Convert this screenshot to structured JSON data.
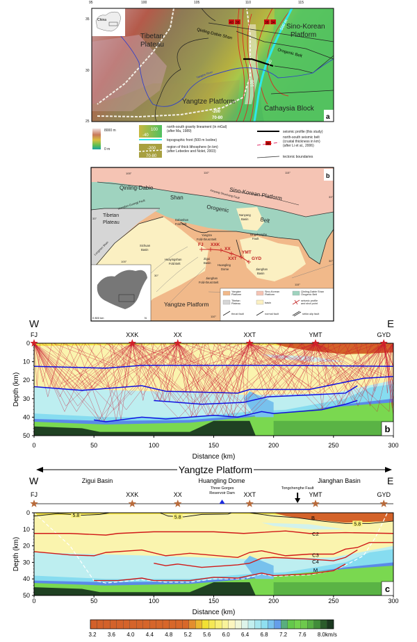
{
  "panel_a": {
    "panel_letter": "a",
    "lon_ticks": [
      "95",
      "100",
      "105",
      "110",
      "115"
    ],
    "lat_ticks": [
      "35",
      "30",
      "25"
    ],
    "inset_label": "China",
    "labels": {
      "tibetan_1": "Tibetan",
      "tibetan_2": "Plateau",
      "qinling": "Qinling-Dabie Shan",
      "sino_1": "Sino-Korean",
      "sino_2": "Platform",
      "orogenic": "Orogenic Belt",
      "yangtze_river": "Yangtze River",
      "yangtze": "Yangtze Platform",
      "cathaysia": "Cathaysia Block",
      "iso500": "500 m",
      "g100": "100",
      "g40": "-40",
      "lith200": "-200",
      "lith7080": "70-80"
    },
    "belt_boxes": [
      "40",
      "38",
      "38",
      "34"
    ],
    "legend": {
      "elev_max": "8000 m",
      "elev_min": "0 m",
      "gravity_1": "north-south gravity lineament (in mGal)",
      "gravity_2": "(after Ma, 1989)",
      "gravity_sw1": "100",
      "gravity_sw2": "-40",
      "topo": "topographic front (500 m Isoline)",
      "lith_1": "region of thick lithosphere (in km)",
      "lith_2": "(after Lebedev and Nolet, 2003)",
      "lith_sw1": "-200",
      "lith_sw2": "70-80",
      "profile": "seismic profile (this study)",
      "belt_1": "north-south seismic belt",
      "belt_2": "(crustal thickness in km)",
      "belt_3": "(after Li et al., 2006)",
      "belt_box": "38",
      "tectonic": "tectonic boundaries"
    }
  },
  "panel_b_map": {
    "panel_letter": "b",
    "labels": {
      "sino": "Sino-Korean Platform",
      "qinling": "Qinling-Dabie",
      "shan": "Shan",
      "orogenic": "Orogenic",
      "belt": "Belt",
      "xinyang": "Xinyang-Shuchang Fault",
      "xiangfan": "Xiangfan-Guangji Fault",
      "tibetan_1": "Tibetan",
      "tibetan_2": "Plateau",
      "longmen": "Longmen Shan",
      "dabashan_1": "Dabashan",
      "dabashan_2": "Fold Belt",
      "nanyang_1": "Nanyang",
      "nanyang_2": "Basin",
      "yfb_1": "Yangtze",
      "yfb_2": "Fold-thrust Belt",
      "tongcheng_1": "Tongchenghe",
      "tongcheng_2": "Fault",
      "sichuan_1": "Sichuan",
      "sichuan_2": "Basin",
      "huaying_1": "Huayingshan",
      "huaying_2": "Fold Belt",
      "zigui_1": "Zigui",
      "zigui_2": "Basin",
      "huangling_1": "Huangling",
      "huangling_2": "Dome",
      "jianghan_1": "Jianghan",
      "jianghan_2": "Basin",
      "jfb_1": "Jianghan",
      "jfb_2": "Fold-thrust Belt",
      "yangtze": "Yangtze Platform"
    },
    "stations": [
      "FJ",
      "XXK",
      "XX",
      "XXT",
      "YMT",
      "GYD"
    ],
    "degree_labels": {
      "d105a": "105°",
      "d110a": "110°",
      "d115a": "115°",
      "d33r": "33°",
      "d33l": "33°",
      "d30r": "30°",
      "d105b": "105°",
      "d30b": "30°",
      "d115b": "115°",
      "d110b": "110°"
    },
    "scale": "0   800 km",
    "north": "N",
    "legend": {
      "yangtze_1": "Yangtze",
      "yangtze_2": "Platform",
      "sino_1": "Sino-Korean",
      "sino_2": "Platform",
      "qdso_1": "Qinling-Dabie Shan",
      "qdso_2": "Orogenic Belt",
      "tibet_1": "Tibetan",
      "tibet_2": "Plateau",
      "basin": "basin",
      "shot_1": "seismic profile",
      "shot_2": "and shot point",
      "thrust": "thrust fault",
      "normal": "normal fault",
      "strike": "strike-slip fault"
    },
    "colors": {
      "yangtze": "#f1b98a",
      "sino": "#f5c4b4",
      "qinling": "#9fd3bf",
      "tibet": "#d6d6d6",
      "basin": "#fbf0c2"
    }
  },
  "chart_data": [
    {
      "type": "ray-tracing section",
      "panel_letter": "b",
      "west": "W",
      "east": "E",
      "xlabel": "Distance (km)",
      "ylabel": "Depth (km)",
      "xlim": [
        0,
        300
      ],
      "ylim": [
        50,
        0
      ],
      "xticks": [
        0,
        50,
        100,
        150,
        200,
        250,
        300
      ],
      "yticks": [
        0,
        10,
        20,
        30,
        40,
        50
      ],
      "stations": [
        {
          "name": "FJ",
          "x": 0
        },
        {
          "name": "XXK",
          "x": 82
        },
        {
          "name": "XX",
          "x": 120
        },
        {
          "name": "XXT",
          "x": 180
        },
        {
          "name": "YMT",
          "x": 235
        },
        {
          "name": "GYD",
          "x": 292
        }
      ],
      "interfaces": [
        {
          "points": [
            [
              0,
              12.5
            ],
            [
              60,
              13.5
            ],
            [
              90,
              12
            ],
            [
              150,
              12
            ],
            [
              200,
              12
            ],
            [
              300,
              12.5
            ]
          ]
        },
        {
          "points": [
            [
              0,
              23.5
            ],
            [
              40,
              25.5
            ],
            [
              90,
              23
            ],
            [
              110,
              26
            ],
            [
              170,
              27
            ],
            [
              180,
              25
            ],
            [
              230,
              25
            ],
            [
              260,
              21
            ],
            [
              275,
              19
            ],
            [
              300,
              18
            ]
          ]
        },
        {
          "points": [
            [
              100,
              31
            ],
            [
              140,
              33
            ],
            [
              175,
              32
            ],
            [
              195,
              29
            ],
            [
              230,
              28
            ],
            [
              260,
              27
            ],
            [
              270,
              23
            ]
          ]
        },
        {
          "points": [
            [
              50,
              41.5
            ],
            [
              60,
              42.5
            ],
            [
              90,
              40
            ],
            [
              110,
              41
            ],
            [
              150,
              39
            ],
            [
              170,
              40
            ],
            [
              190,
              37
            ],
            [
              200,
              38
            ],
            [
              240,
              36
            ],
            [
              260,
              33
            ],
            [
              270,
              31
            ]
          ]
        }
      ],
      "colors": {
        "rays": "#c8102e",
        "interfaces": "#1010e0",
        "stations": "#d0202a"
      }
    },
    {
      "type": "velocity section",
      "panel_letter": "c",
      "domain": "Yangtze Platform",
      "west": "W",
      "east": "E",
      "regions": [
        "Zigui Basin",
        "Huangling Dome",
        "Jianghan Basin"
      ],
      "dam_1": "Three Gorges",
      "dam_2": "Reservoir Dam",
      "dam_x": 157,
      "fault": "Tongchenghe Fault",
      "fault_x": 220,
      "xlabel": "Distance (km)",
      "ylabel": "Depth (km)",
      "xlim": [
        0,
        300
      ],
      "ylim": [
        50,
        0
      ],
      "xticks": [
        0,
        50,
        100,
        150,
        200,
        250,
        300
      ],
      "yticks": [
        0,
        10,
        20,
        30,
        40,
        50
      ],
      "stations": [
        {
          "name": "FJ",
          "x": 0
        },
        {
          "name": "XXK",
          "x": 82
        },
        {
          "name": "XX",
          "x": 120
        },
        {
          "name": "XXT",
          "x": 180
        },
        {
          "name": "YMT",
          "x": 235
        },
        {
          "name": "GYD",
          "x": 292
        }
      ],
      "contour_label": "5.8",
      "contours_5_8": [
        [
          [
            0,
            2
          ],
          [
            20,
            0.5
          ],
          [
            40,
            1.5
          ],
          [
            55,
            1
          ],
          [
            63,
            0
          ]
        ],
        [
          [
            105,
            0
          ],
          [
            112,
            2
          ],
          [
            125,
            2.5
          ],
          [
            140,
            1
          ],
          [
            162,
            0.8
          ],
          [
            165,
            0
          ]
        ],
        [
          [
            180,
            0
          ],
          [
            200,
            2
          ],
          [
            220,
            3
          ],
          [
            240,
            5
          ],
          [
            260,
            6.5
          ],
          [
            280,
            6.5
          ],
          [
            300,
            5
          ]
        ]
      ],
      "interfaces": [
        {
          "name": "B",
          "label_x": 233,
          "label_y": 3,
          "points": []
        },
        {
          "name": "C2",
          "label_x": 235,
          "label_y": 12.5,
          "points": [
            [
              0,
              12.5
            ],
            [
              30,
              12.5
            ],
            [
              60,
              13.5
            ],
            [
              70,
              12.5
            ],
            [
              100,
              11.5
            ],
            [
              150,
              11.5
            ],
            [
              175,
              12.5
            ],
            [
              210,
              11
            ],
            [
              230,
              12.5
            ],
            [
              260,
              12
            ],
            [
              300,
              12.5
            ]
          ]
        },
        {
          "name": "C3",
          "label_x": 235,
          "label_y": 25.5,
          "points": [
            [
              0,
              23.5
            ],
            [
              30,
              25.5
            ],
            [
              50,
              26
            ],
            [
              60,
              24
            ],
            [
              90,
              22.5
            ],
            [
              110,
              26
            ],
            [
              130,
              24.5
            ],
            [
              170,
              27
            ],
            [
              180,
              24
            ],
            [
              190,
              23
            ],
            [
              210,
              26
            ],
            [
              230,
              25
            ],
            [
              250,
              25
            ],
            [
              260,
              22
            ],
            [
              270,
              21
            ],
            [
              280,
              18
            ],
            [
              300,
              18
            ]
          ]
        },
        {
          "name": "C4",
          "label_x": 235,
          "label_y": 29.5,
          "points": [
            [
              100,
              30.5
            ],
            [
              110,
              32
            ],
            [
              120,
              31
            ],
            [
              140,
              33
            ],
            [
              160,
              32
            ],
            [
              170,
              31.5
            ],
            [
              180,
              30.5
            ],
            [
              190,
              27.5
            ],
            [
              200,
              27
            ],
            [
              230,
              28
            ],
            [
              250,
              29
            ],
            [
              260,
              27
            ],
            [
              270,
              22.5
            ]
          ]
        },
        {
          "name": "M",
          "label_x": 235,
          "label_y": 34.5,
          "points": [
            [
              50,
              41
            ],
            [
              70,
              41
            ],
            [
              90,
              39.5
            ],
            [
              100,
              41
            ],
            [
              130,
              41
            ],
            [
              150,
              39
            ],
            [
              170,
              39.5
            ],
            [
              190,
              36.5
            ],
            [
              200,
              38
            ],
            [
              230,
              37
            ],
            [
              250,
              35
            ],
            [
              260,
              31
            ]
          ]
        }
      ],
      "lithosphere_dashed": [
        [
          0,
          0
        ],
        [
          30,
          20
        ],
        [
          50,
          41
        ],
        [
          60,
          42.5
        ],
        [
          90,
          40.5
        ],
        [
          110,
          42
        ],
        [
          130,
          42
        ],
        [
          150,
          40
        ],
        [
          175,
          40
        ],
        [
          190,
          37
        ],
        [
          200,
          38.5
        ],
        [
          230,
          37.5
        ],
        [
          250,
          35
        ],
        [
          262,
          31
        ],
        [
          275,
          26
        ],
        [
          285,
          15
        ],
        [
          295,
          0
        ]
      ],
      "colors": {
        "interfaces": "#d01818",
        "stations": "#b86a3a",
        "dam": "#1a2ae0"
      }
    }
  ],
  "colorbar": {
    "ticks": [
      "3.2",
      "3.6",
      "4.0",
      "4.4",
      "4.8",
      "5.2",
      "5.6",
      "6.0",
      "6.4",
      "6.8",
      "7.2",
      "7.6",
      "8.0"
    ],
    "unit": "km/s",
    "range": [
      3.2,
      8.3
    ]
  }
}
